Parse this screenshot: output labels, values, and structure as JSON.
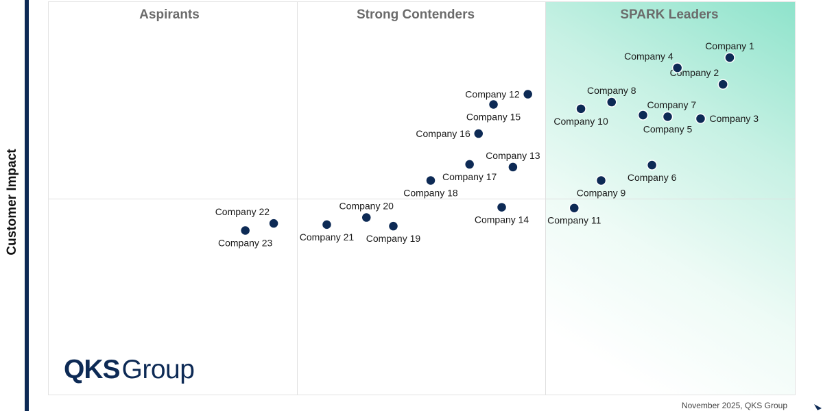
{
  "colors": {
    "marker": "#0d2a55",
    "accent_navy": "#0d2a55",
    "leader_green": "#8ee3cb",
    "quadrant_title": "#6b6b6b"
  },
  "axis": {
    "y_label": "Customer Impact"
  },
  "logo": {
    "bold": "QKS",
    "rest": "Group"
  },
  "footer": {
    "note": "November 2025, QKS Group"
  },
  "chart_data": {
    "type": "scatter",
    "title": "",
    "xlabel": "",
    "ylabel": "Customer Impact",
    "xlim": [
      0,
      100
    ],
    "ylim": [
      0,
      100
    ],
    "quadrants": [
      {
        "name": "Aspirants",
        "x_range": [
          0,
          33.2
        ]
      },
      {
        "name": "Strong Contenders",
        "x_range": [
          33.2,
          66.4
        ]
      },
      {
        "name": "SPARK Leaders",
        "x_range": [
          66.4,
          100
        ]
      }
    ],
    "y_divider": 50,
    "points": [
      {
        "label": "Company 1",
        "x": 91.1,
        "y": 85.9,
        "label_pos": "above"
      },
      {
        "label": "Company 2",
        "x": 90.2,
        "y": 79.1,
        "label_pos": "above-left"
      },
      {
        "label": "Company 3",
        "x": 87.2,
        "y": 70.4,
        "label_pos": "right"
      },
      {
        "label": "Company 4",
        "x": 84.1,
        "y": 83.3,
        "label_pos": "above-left"
      },
      {
        "label": "Company 5",
        "x": 82.8,
        "y": 70.9,
        "label_pos": "below"
      },
      {
        "label": "Company 6",
        "x": 80.7,
        "y": 58.6,
        "label_pos": "below"
      },
      {
        "label": "Company 7",
        "x": 79.5,
        "y": 71.3,
        "label_pos": "above-right"
      },
      {
        "label": "Company 8",
        "x": 75.3,
        "y": 74.6,
        "label_pos": "above"
      },
      {
        "label": "Company 9",
        "x": 73.9,
        "y": 54.7,
        "label_pos": "below"
      },
      {
        "label": "Company 10",
        "x": 71.2,
        "y": 72.9,
        "label_pos": "below"
      },
      {
        "label": "Company 11",
        "x": 70.3,
        "y": 47.7,
        "label_pos": "below"
      },
      {
        "label": "Company 12",
        "x": 64.1,
        "y": 76.6,
        "label_pos": "left"
      },
      {
        "label": "Company 13",
        "x": 62.1,
        "y": 58.1,
        "label_pos": "above"
      },
      {
        "label": "Company 14",
        "x": 60.6,
        "y": 47.9,
        "label_pos": "below"
      },
      {
        "label": "Company 15",
        "x": 59.5,
        "y": 74.0,
        "label_pos": "below"
      },
      {
        "label": "Company 16",
        "x": 57.5,
        "y": 66.6,
        "label_pos": "left"
      },
      {
        "label": "Company 17",
        "x": 56.3,
        "y": 58.8,
        "label_pos": "below"
      },
      {
        "label": "Company 18",
        "x": 51.1,
        "y": 54.7,
        "label_pos": "below"
      },
      {
        "label": "Company 19",
        "x": 46.1,
        "y": 43.1,
        "label_pos": "below"
      },
      {
        "label": "Company 20",
        "x": 42.5,
        "y": 45.3,
        "label_pos": "above"
      },
      {
        "label": "Company 21",
        "x": 37.2,
        "y": 43.5,
        "label_pos": "below"
      },
      {
        "label": "Company 22",
        "x": 30.1,
        "y": 43.8,
        "label_pos": "above-left"
      },
      {
        "label": "Company 23",
        "x": 26.3,
        "y": 42.0,
        "label_pos": "below"
      }
    ]
  }
}
